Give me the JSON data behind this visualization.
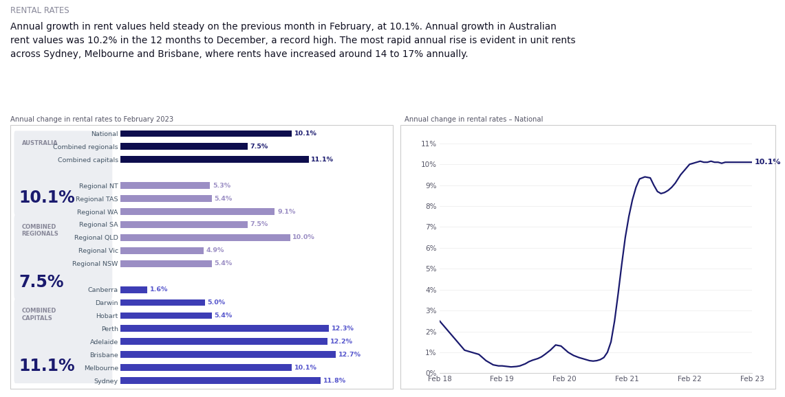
{
  "title": "RENTAL RATES",
  "subtitle_line1": "Annual growth in rent values held steady on the previous month in February, at 10.1%. Annual growth in Australian",
  "subtitle_line2": "rent values was 10.2% in the 12 months to December, a record high. The most rapid annual rise is evident in unit rents",
  "subtitle_line3": "across Sydney, Melbourne and Brisbane, where rents have increased around 14 to 17% annually.",
  "bar_subtitle": "Annual change in rental rates to February 2023",
  "line_subtitle": "Annual change in rental rates – National",
  "kpi_boxes": [
    {
      "label": "AUSTRALIA",
      "value": "10.1%"
    },
    {
      "label": "COMBINED\nREGIONALS",
      "value": "7.5%"
    },
    {
      "label": "COMBINED\nCAPITALS",
      "value": "11.1%"
    }
  ],
  "bar_categories": [
    "National",
    "Combined regionals",
    "Combined capitals",
    "",
    "Regional NT",
    "Regional TAS",
    "Regional WA",
    "Regional SA",
    "Regional QLD",
    "Regional Vic",
    "Regional NSW",
    "",
    "Canberra",
    "Darwin",
    "Hobart",
    "Perth",
    "Adelaide",
    "Brisbane",
    "Melbourne",
    "Sydney"
  ],
  "bar_values": [
    10.1,
    7.5,
    11.1,
    null,
    5.3,
    5.4,
    9.1,
    7.5,
    10.0,
    4.9,
    5.4,
    null,
    1.6,
    5.0,
    5.4,
    12.3,
    12.2,
    12.7,
    10.1,
    11.8
  ],
  "bar_labels": [
    "10.1%",
    "7.5%",
    "11.1%",
    "",
    "5.3%",
    "5.4%",
    "9.1%",
    "7.5%",
    "10.0%",
    "4.9%",
    "5.4%",
    "",
    "1.6%",
    "5.0%",
    "5.4%",
    "12.3%",
    "12.2%",
    "12.7%",
    "10.1%",
    "11.8%"
  ],
  "bar_colors": [
    "#0d0d4d",
    "#0d0d4d",
    "#0d0d4d",
    null,
    "#9b8ec4",
    "#9b8ec4",
    "#9b8ec4",
    "#9b8ec4",
    "#9b8ec4",
    "#9b8ec4",
    "#9b8ec4",
    null,
    "#3d3db5",
    "#3d3db5",
    "#3d3db5",
    "#3d3db5",
    "#3d3db5",
    "#3d3db5",
    "#3d3db5",
    "#3d3db5"
  ],
  "bar_label_colors": [
    "#1a1a6e",
    "#1a1a6e",
    "#1a1a6e",
    null,
    "#9b8ec4",
    "#9b8ec4",
    "#9b8ec4",
    "#9b8ec4",
    "#9b8ec4",
    "#9b8ec4",
    "#9b8ec4",
    null,
    "#5555cc",
    "#5555cc",
    "#5555cc",
    "#5555cc",
    "#5555cc",
    "#5555cc",
    "#5555cc",
    "#5555cc"
  ],
  "line_x": [
    0,
    0.3,
    0.6,
    1.0,
    1.4,
    1.8,
    2.2,
    2.6,
    3.0,
    3.3,
    3.5,
    3.8,
    4.0,
    4.3,
    4.5,
    4.8,
    5.0,
    5.2,
    5.5,
    5.7,
    5.9,
    6.2,
    6.5,
    6.8,
    7.0,
    7.2,
    7.5,
    7.8,
    8.0,
    8.2,
    8.4,
    8.6,
    8.8,
    9.0,
    9.2,
    9.4,
    9.6,
    9.8,
    10.0,
    10.2,
    10.4,
    10.6,
    10.8,
    11.0,
    11.2,
    11.5,
    11.8,
    12.0,
    12.2,
    12.4,
    12.6,
    12.8,
    13.0,
    13.2,
    13.5,
    13.8,
    14.0,
    14.2,
    14.4,
    14.6,
    14.8,
    15.0,
    15.2,
    15.4,
    15.6,
    15.8,
    16.0,
    16.2,
    16.4,
    16.6,
    16.8,
    17.0,
    17.2,
    17.5
  ],
  "line_y": [
    2.5,
    2.2,
    1.9,
    1.5,
    1.1,
    1.0,
    0.9,
    0.6,
    0.4,
    0.35,
    0.35,
    0.32,
    0.3,
    0.32,
    0.35,
    0.45,
    0.55,
    0.62,
    0.7,
    0.78,
    0.9,
    1.1,
    1.35,
    1.3,
    1.15,
    1.0,
    0.85,
    0.75,
    0.7,
    0.65,
    0.6,
    0.58,
    0.6,
    0.65,
    0.75,
    1.0,
    1.5,
    2.5,
    3.8,
    5.2,
    6.5,
    7.5,
    8.3,
    8.9,
    9.3,
    9.4,
    9.35,
    9.0,
    8.7,
    8.6,
    8.65,
    8.75,
    8.9,
    9.1,
    9.5,
    9.8,
    10.0,
    10.05,
    10.1,
    10.15,
    10.1,
    10.1,
    10.15,
    10.1,
    10.1,
    10.05,
    10.1,
    10.1,
    10.1,
    10.1,
    10.1,
    10.1,
    10.1,
    10.1
  ],
  "line_xticks": [
    0,
    3.5,
    7.0,
    10.5,
    14.0,
    17.5
  ],
  "line_xticklabels": [
    "Feb 18",
    "Feb 19",
    "Feb 20",
    "Feb 21",
    "Feb 22",
    "Feb 23"
  ],
  "line_yticks": [
    0,
    1,
    2,
    3,
    4,
    5,
    6,
    7,
    8,
    9,
    10,
    11
  ],
  "line_yticklabels": [
    "0%",
    "1%",
    "2%",
    "3%",
    "4%",
    "5%",
    "6%",
    "7%",
    "8%",
    "9%",
    "10%",
    "11%"
  ],
  "line_color": "#1a1a6e",
  "line_end_label": "10.1%",
  "bg_color": "#ffffff",
  "kpi_bg_color": "#eceef2",
  "kpi_text_color": "#1a1a6e",
  "kpi_label_color": "#888899"
}
